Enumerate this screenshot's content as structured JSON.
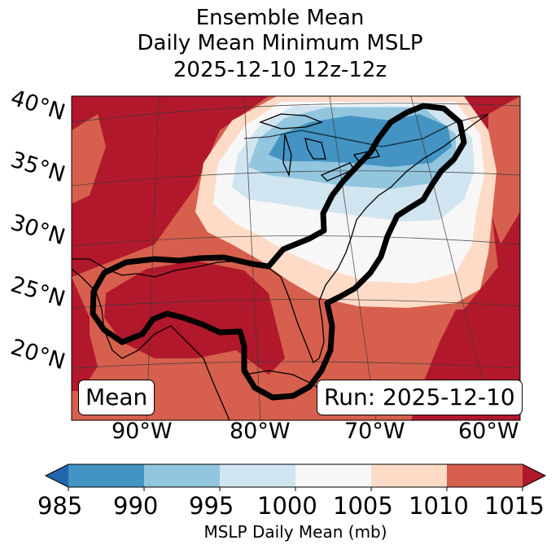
{
  "title": {
    "line1": "Ensemble Mean",
    "line2": "Daily Mean Minimum MSLP",
    "line3": "2025-12-10 12z-12z"
  },
  "map": {
    "lat_labels": [
      "40°N",
      "35°N",
      "30°N",
      "25°N",
      "20°N"
    ],
    "lon_labels": [
      "90°W",
      "80°W",
      "70°W",
      "60°W"
    ],
    "left_box": "Mean",
    "right_box": "Run: 2025-12-10",
    "fill_levels_mb": [
      1015,
      1010,
      1005,
      1000,
      995,
      990
    ],
    "contour_color": "#000000"
  },
  "colorbar": {
    "label": "MSLP Daily Mean (mb)",
    "ticks": [
      "985",
      "990",
      "995",
      "1000",
      "1005",
      "1010",
      "1015"
    ],
    "colors": {
      "below": "#2166ac",
      "985-990": "#4393c3",
      "990-995": "#92c5de",
      "995-1000": "#d1e5f0",
      "1000-1005": "#f7f7f7",
      "1005-1010": "#fddbc7",
      "1010-1015": "#d6604d",
      "above": "#b2182b"
    }
  }
}
